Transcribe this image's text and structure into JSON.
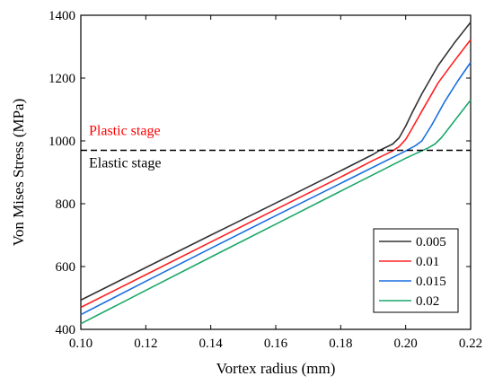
{
  "chart_data": {
    "type": "line",
    "xlabel": "Vortex radius (mm)",
    "ylabel": "Von Mises Stress (MPa)",
    "xlim": [
      0.1,
      0.22
    ],
    "ylim": [
      400,
      1400
    ],
    "xticks": [
      "0.10",
      "0.12",
      "0.14",
      "0.16",
      "0.18",
      "0.20",
      "0.22"
    ],
    "yticks": [
      "400",
      "600",
      "800",
      "1000",
      "1200",
      "1400"
    ],
    "grid": false,
    "legend_position": "bottom-right",
    "series": [
      {
        "name": "0.005",
        "color": "#333333",
        "x": [
          0.1,
          0.12,
          0.14,
          0.16,
          0.18,
          0.19,
          0.192,
          0.194,
          0.196,
          0.198,
          0.2,
          0.202,
          0.205,
          0.21,
          0.215,
          0.22
        ],
        "y": [
          493,
          597,
          700,
          802,
          905,
          957,
          970,
          980,
          990,
          1010,
          1047,
          1090,
          1150,
          1240,
          1312,
          1378
        ]
      },
      {
        "name": "0.01",
        "color": "#ff2020",
        "x": [
          0.1,
          0.12,
          0.14,
          0.16,
          0.18,
          0.19,
          0.196,
          0.198,
          0.2,
          0.202,
          0.205,
          0.21,
          0.215,
          0.22
        ],
        "y": [
          470,
          574,
          678,
          782,
          885,
          938,
          968,
          982,
          1005,
          1040,
          1095,
          1185,
          1255,
          1322
        ]
      },
      {
        "name": "0.015",
        "color": "#1a6fe0",
        "x": [
          0.1,
          0.12,
          0.14,
          0.16,
          0.18,
          0.2,
          0.203,
          0.205,
          0.208,
          0.212,
          0.216,
          0.22
        ],
        "y": [
          447,
          553,
          658,
          762,
          865,
          968,
          985,
          1000,
          1050,
          1125,
          1190,
          1250
        ]
      },
      {
        "name": "0.02",
        "color": "#1aa86a",
        "x": [
          0.1,
          0.12,
          0.14,
          0.16,
          0.18,
          0.2,
          0.207,
          0.209,
          0.211,
          0.214,
          0.217,
          0.22
        ],
        "y": [
          418,
          524,
          630,
          735,
          840,
          945,
          978,
          990,
          1010,
          1050,
          1090,
          1130
        ]
      }
    ],
    "threshold": {
      "y": 970,
      "style": "dashed",
      "color": "#000000"
    },
    "annotations": [
      {
        "text": "Plastic stage",
        "color": "#ff0000"
      },
      {
        "text": "Elastic stage",
        "color": "#000000"
      }
    ]
  }
}
